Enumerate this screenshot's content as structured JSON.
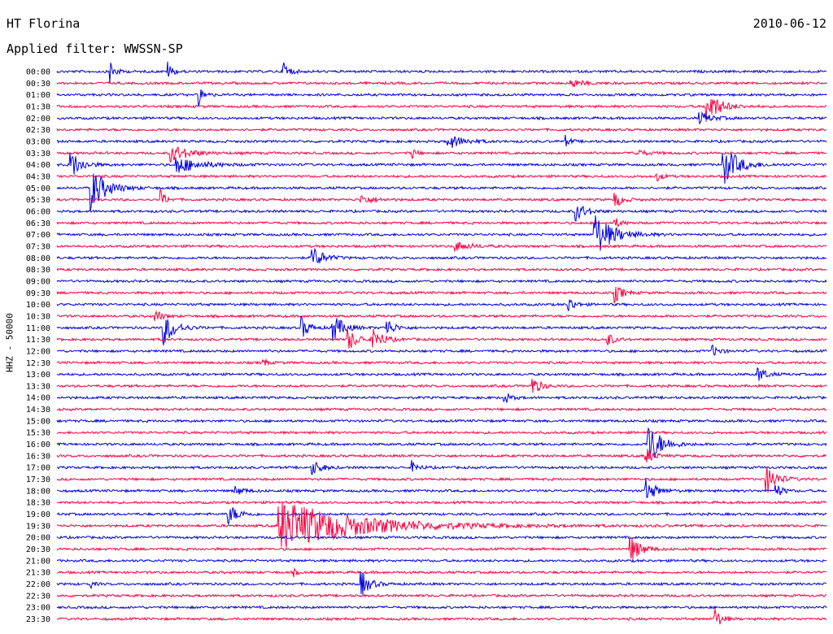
{
  "header": {
    "station": "HT Florina",
    "date": "2010-06-12",
    "filter": "Applied filter: WWSSN-SP"
  },
  "chart_data": {
    "type": "line",
    "ylabel": "HHZ - 50000",
    "trace_colors": [
      "#0000e0",
      "#ff0040"
    ],
    "rows": [
      "00:00",
      "00:30",
      "01:00",
      "01:30",
      "02:00",
      "02:30",
      "03:00",
      "03:30",
      "04:00",
      "04:30",
      "05:00",
      "05:30",
      "06:00",
      "06:30",
      "07:00",
      "07:30",
      "08:00",
      "08:30",
      "09:00",
      "09:30",
      "10:00",
      "10:30",
      "11:00",
      "11:30",
      "12:00",
      "12:30",
      "13:00",
      "13:30",
      "14:00",
      "14:30",
      "15:00",
      "15:30",
      "16:00",
      "16:30",
      "17:00",
      "17:30",
      "18:00",
      "18:30",
      "19:00",
      "19:30",
      "20:00",
      "20:30",
      "21:00",
      "21:30",
      "22:00",
      "22:30",
      "23:00",
      "23:30"
    ],
    "x_range_minutes": [
      0,
      30
    ],
    "events": [
      {
        "row": 0,
        "t": 2.0,
        "amp": 1.7,
        "dur": 0.4
      },
      {
        "row": 0,
        "t": 4.3,
        "amp": 1.0,
        "dur": 0.4
      },
      {
        "row": 0,
        "t": 8.8,
        "amp": 1.5,
        "dur": 0.4
      },
      {
        "row": 1,
        "t": 20.0,
        "amp": 0.5,
        "dur": 0.8
      },
      {
        "row": 2,
        "t": 5.5,
        "amp": 1.1,
        "dur": 0.4
      },
      {
        "row": 3,
        "t": 25.3,
        "amp": 1.8,
        "dur": 1.0
      },
      {
        "row": 4,
        "t": 25.0,
        "amp": 0.6,
        "dur": 1.0
      },
      {
        "row": 6,
        "t": 15.2,
        "amp": 0.8,
        "dur": 1.2
      },
      {
        "row": 6,
        "t": 19.8,
        "amp": 0.6,
        "dur": 0.4
      },
      {
        "row": 7,
        "t": 4.4,
        "amp": 0.9,
        "dur": 1.4
      },
      {
        "row": 7,
        "t": 13.8,
        "amp": 0.8,
        "dur": 0.3
      },
      {
        "row": 7,
        "t": 22.5,
        "amp": 0.4,
        "dur": 0.8
      },
      {
        "row": 8,
        "t": 0.5,
        "amp": 1.6,
        "dur": 0.8
      },
      {
        "row": 8,
        "t": 4.6,
        "amp": 0.9,
        "dur": 1.8
      },
      {
        "row": 8,
        "t": 25.9,
        "amp": 2.2,
        "dur": 1.2
      },
      {
        "row": 9,
        "t": 23.3,
        "amp": 0.6,
        "dur": 0.5
      },
      {
        "row": 10,
        "t": 1.3,
        "amp": 2.2,
        "dur": 1.2
      },
      {
        "row": 11,
        "t": 4.0,
        "amp": 1.1,
        "dur": 0.4
      },
      {
        "row": 11,
        "t": 11.8,
        "amp": 0.5,
        "dur": 1.0
      },
      {
        "row": 11,
        "t": 21.7,
        "amp": 0.9,
        "dur": 0.6
      },
      {
        "row": 12,
        "t": 20.2,
        "amp": 1.0,
        "dur": 0.8
      },
      {
        "row": 13,
        "t": 21.7,
        "amp": 0.6,
        "dur": 0.5
      },
      {
        "row": 14,
        "t": 20.9,
        "amp": 2.4,
        "dur": 1.4
      },
      {
        "row": 15,
        "t": 15.5,
        "amp": 0.5,
        "dur": 1.2
      },
      {
        "row": 16,
        "t": 9.9,
        "amp": 1.4,
        "dur": 0.8
      },
      {
        "row": 19,
        "t": 21.7,
        "amp": 1.1,
        "dur": 0.6
      },
      {
        "row": 20,
        "t": 19.9,
        "amp": 0.9,
        "dur": 0.5
      },
      {
        "row": 21,
        "t": 3.8,
        "amp": 0.8,
        "dur": 0.5
      },
      {
        "row": 22,
        "t": 4.1,
        "amp": 1.9,
        "dur": 0.9
      },
      {
        "row": 22,
        "t": 9.5,
        "amp": 1.2,
        "dur": 0.6
      },
      {
        "row": 22,
        "t": 10.7,
        "amp": 1.6,
        "dur": 0.8
      },
      {
        "row": 22,
        "t": 12.8,
        "amp": 1.1,
        "dur": 0.6
      },
      {
        "row": 23,
        "t": 11.3,
        "amp": 1.2,
        "dur": 0.8
      },
      {
        "row": 23,
        "t": 12.3,
        "amp": 1.1,
        "dur": 0.8
      },
      {
        "row": 23,
        "t": 21.4,
        "amp": 0.9,
        "dur": 0.5
      },
      {
        "row": 24,
        "t": 25.5,
        "amp": 0.6,
        "dur": 0.6
      },
      {
        "row": 25,
        "t": 8.0,
        "amp": 0.7,
        "dur": 0.3
      },
      {
        "row": 26,
        "t": 27.3,
        "amp": 0.9,
        "dur": 0.6
      },
      {
        "row": 27,
        "t": 18.5,
        "amp": 1.1,
        "dur": 0.6
      },
      {
        "row": 28,
        "t": 17.4,
        "amp": 0.7,
        "dur": 0.5
      },
      {
        "row": 32,
        "t": 23.0,
        "amp": 2.5,
        "dur": 1.0
      },
      {
        "row": 33,
        "t": 22.9,
        "amp": 1.0,
        "dur": 0.6
      },
      {
        "row": 34,
        "t": 9.9,
        "amp": 0.9,
        "dur": 0.7
      },
      {
        "row": 34,
        "t": 13.8,
        "amp": 0.7,
        "dur": 0.5
      },
      {
        "row": 35,
        "t": 27.6,
        "amp": 1.7,
        "dur": 0.8
      },
      {
        "row": 36,
        "t": 22.9,
        "amp": 1.3,
        "dur": 0.8
      },
      {
        "row": 36,
        "t": 28.0,
        "amp": 0.8,
        "dur": 0.5
      },
      {
        "row": 36,
        "t": 6.9,
        "amp": 0.5,
        "dur": 0.7
      },
      {
        "row": 38,
        "t": 6.6,
        "amp": 1.2,
        "dur": 0.8
      },
      {
        "row": 39,
        "t": 8.6,
        "amp": 2.6,
        "dur": 6.0
      },
      {
        "row": 41,
        "t": 22.3,
        "amp": 1.6,
        "dur": 0.8
      },
      {
        "row": 43,
        "t": 9.2,
        "amp": 0.4,
        "dur": 0.3
      },
      {
        "row": 44,
        "t": 11.8,
        "amp": 1.5,
        "dur": 0.7
      },
      {
        "row": 44,
        "t": 1.3,
        "amp": 0.4,
        "dur": 0.3
      },
      {
        "row": 47,
        "t": 25.6,
        "amp": 1.3,
        "dur": 0.5
      }
    ]
  }
}
